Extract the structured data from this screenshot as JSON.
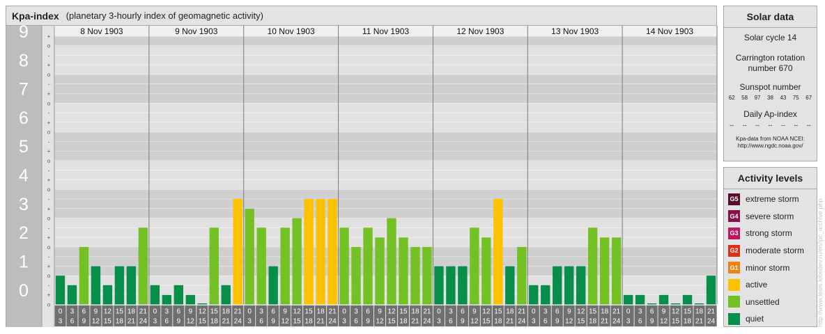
{
  "header": {
    "title": "Kpa-index",
    "subtitle": "(planetary 3-hourly index of geomagnetic activity)"
  },
  "chart_data": {
    "type": "bar",
    "days": [
      "8 Nov 1903",
      "9 Nov 1903",
      "10 Nov 1903",
      "11 Nov 1903",
      "12 Nov 1903",
      "13 Nov 1903",
      "14 Nov 1903"
    ],
    "interval_labels": [
      [
        "0",
        "3"
      ],
      [
        "3",
        "6"
      ],
      [
        "6",
        "9"
      ],
      [
        "9",
        "12"
      ],
      [
        "12",
        "15"
      ],
      [
        "15",
        "18"
      ],
      [
        "18",
        "21"
      ],
      [
        "21",
        "24"
      ]
    ],
    "y_tick_labels": [
      "0",
      "1",
      "2",
      "3",
      "4",
      "5",
      "6",
      "7",
      "8",
      "9"
    ],
    "y_sub_labels": [
      "o",
      "+",
      "-"
    ],
    "ylim": [
      0,
      9.33
    ],
    "values": [
      [
        1.0,
        0.67,
        2.0,
        1.33,
        0.67,
        1.33,
        1.33,
        2.67
      ],
      [
        0.67,
        0.33,
        0.67,
        0.33,
        0.0,
        2.67,
        0.67,
        3.67
      ],
      [
        3.33,
        2.67,
        1.33,
        2.67,
        3.0,
        3.67,
        3.67,
        3.67
      ],
      [
        2.67,
        2.0,
        2.67,
        2.33,
        3.0,
        2.33,
        2.0,
        2.0
      ],
      [
        1.33,
        1.33,
        1.33,
        2.67,
        2.33,
        3.67,
        1.33,
        2.0
      ],
      [
        0.67,
        0.67,
        1.33,
        1.33,
        1.33,
        2.67,
        2.33,
        2.33
      ],
      [
        0.33,
        0.33,
        0.0,
        0.33,
        0.0,
        0.33,
        0.0,
        1.0
      ]
    ],
    "level_colors": {
      "quiet": "#068e4a",
      "unsettled": "#74c125",
      "active": "#fcc200",
      "minor storm": "#ee8014",
      "moderate storm": "#dd2e18",
      "strong storm": "#be1760",
      "severe storm": "#8a0f4d",
      "extreme storm": "#560b2f"
    }
  },
  "solar": {
    "title": "Solar data",
    "cycle": "Solar cycle 14",
    "carrington_line1": "Carrington rotation",
    "carrington_line2": "number 670",
    "sunspot_title": "Sunspot number",
    "sunspots": [
      "62",
      "58",
      "97",
      "38",
      "43",
      "75",
      "67"
    ],
    "ap_title": "Daily Ap-index",
    "ap_values": [
      "--",
      "--",
      "--",
      "--",
      "--",
      "--",
      "--"
    ],
    "source_line1": "Kpa-data from NOAA NCEI:",
    "source_line2": "http://www.ngdc.noaa.gov/"
  },
  "levels": {
    "title": "Activity levels",
    "items": [
      {
        "code": "G5",
        "label": "extreme storm",
        "color": "#560b2f"
      },
      {
        "code": "G4",
        "label": "severe storm",
        "color": "#8a0f4d"
      },
      {
        "code": "G3",
        "label": "strong storm",
        "color": "#be1760"
      },
      {
        "code": "G2",
        "label": "moderate storm",
        "color": "#dd2e18"
      },
      {
        "code": "G1",
        "label": "minor storm",
        "color": "#ee8014"
      },
      {
        "code": "",
        "label": "active",
        "color": "#fcc200"
      },
      {
        "code": "",
        "label": "unsettled",
        "color": "#74c125"
      },
      {
        "code": "",
        "label": "quiet",
        "color": "#068e4a"
      }
    ]
  },
  "credit": "http://www.tesis.lebedev.ru/en/ipc_archive.php"
}
